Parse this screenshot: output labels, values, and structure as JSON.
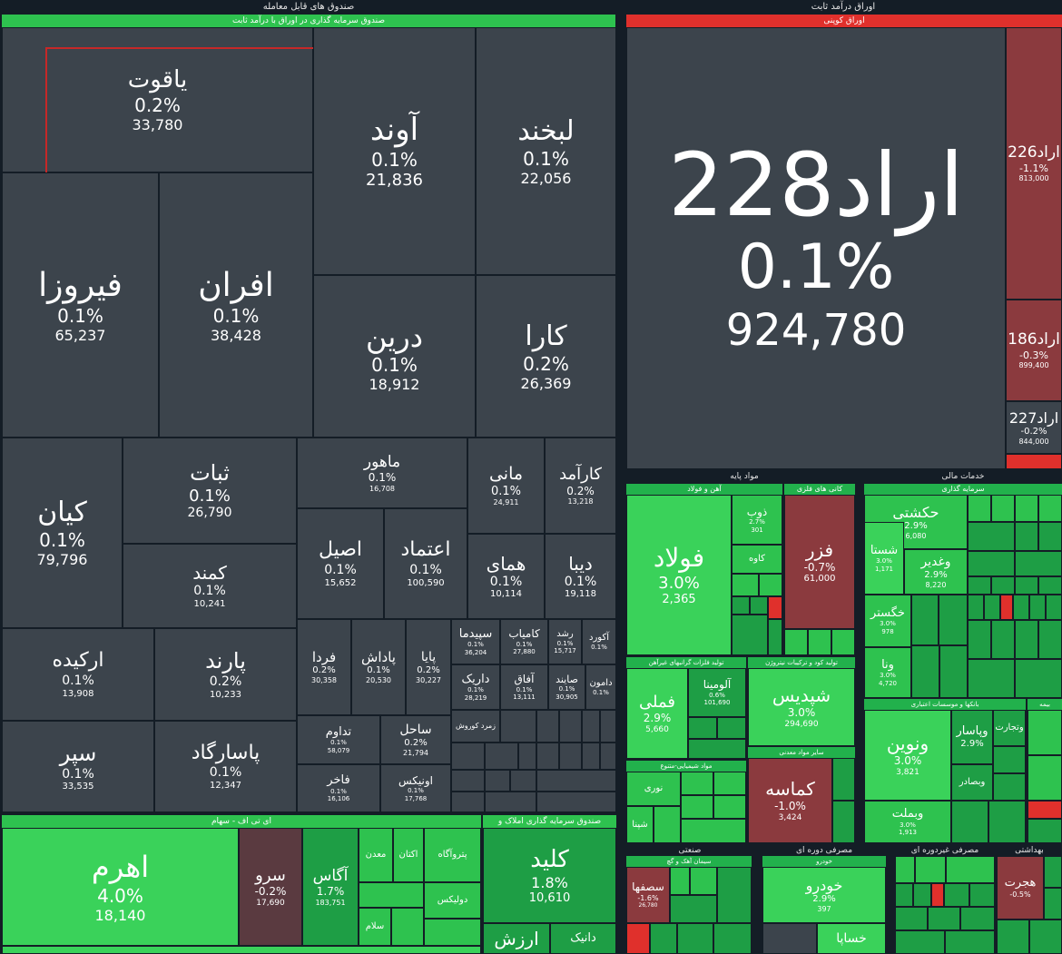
{
  "headers": {
    "left": "صندوق های قابل معامله",
    "left_sub": "صندوق سرمایه گذاری در اوراق با درآمد ثابت",
    "right": "اوراق درآمد ثابت",
    "right_sub": "اوراق کوپنی",
    "etf": "ای تی اف - سهام",
    "land": "صندوق سرمایه گذاری املاک و مستغلات",
    "base": "مواد پایه",
    "iron": "آهن و فولاد",
    "metal": "کانی های فلزی",
    "finance": "خدمات مالی",
    "invest": "سرمایه گذاری",
    "bank": "بانکها و موسسات اعتباری",
    "insurance": "بیمه",
    "basemetal": "تولید فلزات گرانبهای غیرآهن",
    "coke": "تولید کود و ترکیبات نیتروژن",
    "mining": "سایر مواد معدنی",
    "chem": "مواد شیمیایی-متنوع",
    "industrial": "صنعتی",
    "cement": "سیمان آهک و گچ",
    "cyclical": "مصرفی دوره ای",
    "auto": "خودرو",
    "noncyc": "مصرفی غیردوره ای",
    "health": "بهداشتی"
  },
  "fixed": [
    {
      "name": "یاقوت",
      "pct": "0.2%",
      "val": "33,780"
    },
    {
      "name": "آوند",
      "pct": "0.1%",
      "val": "21,836"
    },
    {
      "name": "لبخند",
      "pct": "0.1%",
      "val": "22,056"
    },
    {
      "name": "فیروزا",
      "pct": "0.1%",
      "val": "65,237"
    },
    {
      "name": "افران",
      "pct": "0.1%",
      "val": "38,428"
    },
    {
      "name": "درین",
      "pct": "0.1%",
      "val": "18,912"
    },
    {
      "name": "کارا",
      "pct": "0.2%",
      "val": "26,369"
    },
    {
      "name": "کیان",
      "pct": "0.1%",
      "val": "79,796"
    },
    {
      "name": "ثبات",
      "pct": "0.1%",
      "val": "26,790"
    },
    {
      "name": "ماهور",
      "pct": "0.1%",
      "val": "16,708"
    },
    {
      "name": "مانی",
      "pct": "0.1%",
      "val": "24,911"
    },
    {
      "name": "کارآمد",
      "pct": "0.2%",
      "val": "13,218"
    },
    {
      "name": "کمند",
      "pct": "0.1%",
      "val": "10,241"
    },
    {
      "name": "اصیل",
      "pct": "0.1%",
      "val": "15,652"
    },
    {
      "name": "اعتماد",
      "pct": "0.1%",
      "val": "100,590"
    },
    {
      "name": "همای",
      "pct": "0.1%",
      "val": "10,114"
    },
    {
      "name": "دیبا",
      "pct": "0.1%",
      "val": "19,118"
    },
    {
      "name": "ارکیده",
      "pct": "0.1%",
      "val": "13,908"
    },
    {
      "name": "پارند",
      "pct": "0.2%",
      "val": "10,233"
    },
    {
      "name": "فردا",
      "pct": "0.2%",
      "val": "30,358"
    },
    {
      "name": "پاداش",
      "pct": "0.1%",
      "val": "20,530"
    },
    {
      "name": "پایا",
      "pct": "0.2%",
      "val": "30,227"
    },
    {
      "name": "سپیدما",
      "pct": "0.1%",
      "val": "36,204"
    },
    {
      "name": "کامیاب",
      "pct": "0.1%",
      "val": "27,880"
    },
    {
      "name": "رشد",
      "pct": "0.1%",
      "val": "15,717"
    },
    {
      "name": "آکورد",
      "pct": "0.1%",
      "val": ""
    },
    {
      "name": "داریک",
      "pct": "0.1%",
      "val": "28,219"
    },
    {
      "name": "آفاق",
      "pct": "0.1%",
      "val": "13,111"
    },
    {
      "name": "صایند",
      "pct": "0.1%",
      "val": "30,905"
    },
    {
      "name": "دامون",
      "pct": "0.1%",
      "val": ""
    },
    {
      "name": "سپر",
      "pct": "0.1%",
      "val": "33,535"
    },
    {
      "name": "پاسارگاد",
      "pct": "0.1%",
      "val": "12,347"
    },
    {
      "name": "تداوم",
      "pct": "0.1%",
      "val": "58,079"
    },
    {
      "name": "ساحل",
      "pct": "0.2%",
      "val": "21,794"
    },
    {
      "name": "فاخر",
      "pct": "0.1%",
      "val": "16,106"
    },
    {
      "name": "اونیکس",
      "pct": "0.1%",
      "val": "17,768"
    },
    {
      "name": "زمرد کوروش",
      "pct": "",
      "val": ""
    }
  ],
  "etf": [
    {
      "name": "اهرم",
      "pct": "4.0%",
      "val": "18,140"
    },
    {
      "name": "سرو",
      "pct": "-0.2%",
      "val": "17,690"
    },
    {
      "name": "آگاس",
      "pct": "1.7%",
      "val": "183,751"
    },
    {
      "name": "معدن",
      "pct": "",
      "val": ""
    },
    {
      "name": "اکتان",
      "pct": "",
      "val": ""
    },
    {
      "name": "پتروآگاه",
      "pct": "",
      "val": ""
    },
    {
      "name": "دولیکس",
      "pct": "",
      "val": ""
    },
    {
      "name": "سلام",
      "pct": "",
      "val": ""
    }
  ],
  "land": [
    {
      "name": "کلید",
      "pct": "1.8%",
      "val": "10,610"
    },
    {
      "name": "ارزش",
      "pct": "",
      "val": ""
    },
    {
      "name": "دانیک",
      "pct": "",
      "val": ""
    }
  ],
  "bonds": [
    {
      "name": "اراد228",
      "pct": "0.1%",
      "val": "924,780"
    },
    {
      "name": "اراد226",
      "pct": "-1.1%",
      "val": "813,000"
    },
    {
      "name": "اراد186",
      "pct": "-0.3%",
      "val": "899,400"
    },
    {
      "name": "اراد227",
      "pct": "-0.2%",
      "val": "844,000"
    }
  ],
  "base": [
    {
      "name": "فولاد",
      "pct": "3.0%",
      "val": "2,365"
    },
    {
      "name": "ذوب",
      "pct": "2.7%",
      "val": "301"
    },
    {
      "name": "کاوه",
      "pct": "",
      "val": ""
    },
    {
      "name": "فزر",
      "pct": "-0.7%",
      "val": "61,000"
    },
    {
      "name": "فملی",
      "pct": "2.9%",
      "val": "5,660"
    },
    {
      "name": "آلومینا",
      "pct": "0.6%",
      "val": "101,690"
    },
    {
      "name": "شپدیس",
      "pct": "3.0%",
      "val": "294,690"
    },
    {
      "name": "کماسه",
      "pct": "-1.0%",
      "val": "3,424"
    },
    {
      "name": "نوری",
      "pct": "",
      "val": ""
    },
    {
      "name": "شپنا",
      "pct": "",
      "val": ""
    }
  ],
  "finance": [
    {
      "name": "حکشتی",
      "pct": "2.9%",
      "val": "6,080"
    },
    {
      "name": "شستا",
      "pct": "3.0%",
      "val": "1,171"
    },
    {
      "name": "وغدیر",
      "pct": "2.9%",
      "val": "8,220"
    },
    {
      "name": "خگستر",
      "pct": "3.0%",
      "val": "978"
    },
    {
      "name": "ونا",
      "pct": "3.0%",
      "val": "4,720"
    },
    {
      "name": "ونوین",
      "pct": "3.0%",
      "val": "3,821"
    },
    {
      "name": "وبملت",
      "pct": "3.0%",
      "val": "1,913"
    },
    {
      "name": "وپاسار",
      "pct": "2.9%",
      "val": ""
    },
    {
      "name": "وبصادر",
      "pct": "",
      "val": ""
    },
    {
      "name": "وتجارت",
      "pct": "",
      "val": ""
    }
  ],
  "industrial": [
    {
      "name": "سصفها",
      "pct": "-1.6%",
      "val": "26,780"
    },
    {
      "name": "خودرو",
      "pct": "2.9%",
      "val": "397"
    },
    {
      "name": "خساپا",
      "pct": "",
      "val": ""
    },
    {
      "name": "هجرت",
      "pct": "-0.5%",
      "val": ""
    }
  ],
  "colors": {
    "positive": "#22b14c",
    "negative": "#8b3a3e",
    "neutral": "#3c444c",
    "bg": "#141d26"
  }
}
